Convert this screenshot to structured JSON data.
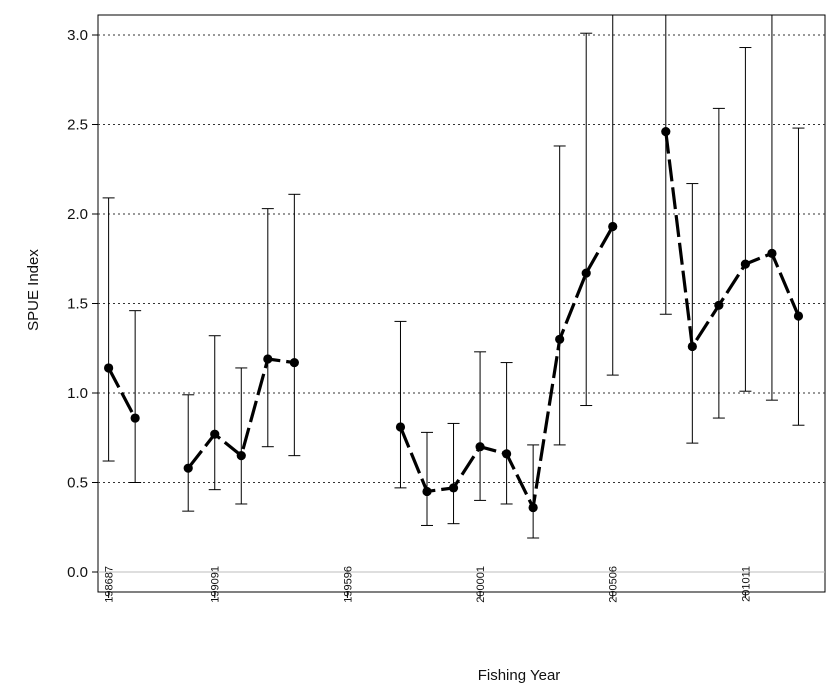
{
  "chart_data": {
    "type": "line",
    "xlabel": "Fishing Year",
    "ylabel": "SPUE Index",
    "ylim": [
      0,
      3.1
    ],
    "yticks": [
      0.0,
      0.5,
      1.0,
      1.5,
      2.0,
      2.5,
      3.0
    ],
    "ytick_labels": [
      "0.0",
      "0.5",
      "1.0",
      "1.5",
      "2.0",
      "2.5",
      "3.0"
    ],
    "grid": "horizontal-dotted",
    "x_range": [
      1985.6,
      2013.0
    ],
    "xticks": [
      {
        "value": 1986,
        "label": "198687"
      },
      {
        "value": 1990,
        "label": "199091"
      },
      {
        "value": 1995,
        "label": "199596"
      },
      {
        "value": 2000,
        "label": "200001"
      },
      {
        "value": 2005,
        "label": "200506"
      },
      {
        "value": 2010,
        "label": "201011"
      }
    ],
    "series": [
      {
        "points": [
          {
            "x": 1986,
            "y": 1.14,
            "lo": 0.62,
            "hi": 2.09
          },
          {
            "x": 1987,
            "y": 0.86,
            "lo": 0.5,
            "hi": 1.46
          },
          {
            "x": 1989,
            "y": 0.58,
            "lo": 0.34,
            "hi": 0.99
          },
          {
            "x": 1990,
            "y": 0.77,
            "lo": 0.46,
            "hi": 1.32
          },
          {
            "x": 1991,
            "y": 0.65,
            "lo": 0.38,
            "hi": 1.14
          },
          {
            "x": 1992,
            "y": 1.19,
            "lo": 0.7,
            "hi": 2.03
          },
          {
            "x": 1993,
            "y": 1.17,
            "lo": 0.65,
            "hi": 2.11
          },
          {
            "x": 1997,
            "y": 0.81,
            "lo": 0.47,
            "hi": 1.4
          },
          {
            "x": 1998,
            "y": 0.45,
            "lo": 0.26,
            "hi": 0.78
          },
          {
            "x": 1999,
            "y": 0.47,
            "lo": 0.27,
            "hi": 0.83
          },
          {
            "x": 2000,
            "y": 0.7,
            "lo": 0.4,
            "hi": 1.23
          },
          {
            "x": 2001,
            "y": 0.66,
            "lo": 0.38,
            "hi": 1.17
          },
          {
            "x": 2002,
            "y": 0.36,
            "lo": 0.19,
            "hi": 0.71
          },
          {
            "x": 2003,
            "y": 1.3,
            "lo": 0.71,
            "hi": 2.38
          },
          {
            "x": 2004,
            "y": 1.67,
            "lo": 0.93,
            "hi": 3.01
          },
          {
            "x": 2005,
            "y": 1.93,
            "lo": 1.1,
            "hi": 3.4
          },
          {
            "x": 2007,
            "y": 2.46,
            "lo": 1.44,
            "hi": 4.2
          },
          {
            "x": 2008,
            "y": 1.26,
            "lo": 0.72,
            "hi": 2.17
          },
          {
            "x": 2009,
            "y": 1.49,
            "lo": 0.86,
            "hi": 2.59
          },
          {
            "x": 2010,
            "y": 1.72,
            "lo": 1.01,
            "hi": 2.93
          },
          {
            "x": 2011,
            "y": 1.78,
            "lo": 0.96,
            "hi": 3.3
          },
          {
            "x": 2012,
            "y": 1.43,
            "lo": 0.82,
            "hi": 2.48
          }
        ],
        "segments": [
          [
            0,
            1
          ],
          [
            2,
            3,
            4,
            5,
            6
          ],
          [
            7,
            8,
            9,
            10,
            11,
            12,
            13,
            14,
            15
          ],
          [
            16,
            17,
            18,
            19,
            20,
            21
          ]
        ]
      }
    ]
  }
}
